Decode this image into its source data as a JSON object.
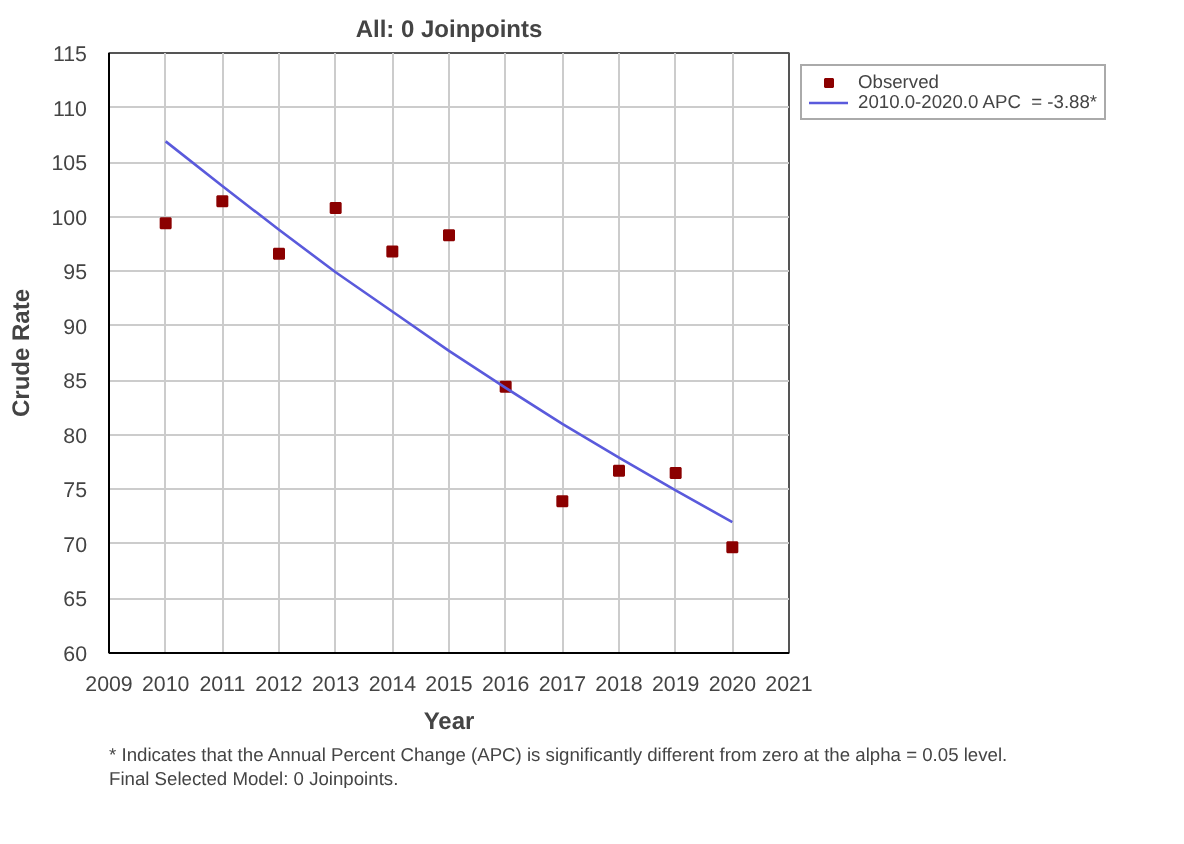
{
  "chart_data": {
    "type": "scatter",
    "title": "All: 0 Joinpoints",
    "xlabel": "Year",
    "ylabel": "Crude Rate",
    "x": [
      2010,
      2011,
      2012,
      2013,
      2014,
      2015,
      2016,
      2017,
      2018,
      2019,
      2020
    ],
    "series": [
      {
        "name": "Observed",
        "color": "#8b0000",
        "marker": "square",
        "values": [
          99.4,
          101.4,
          96.6,
          100.8,
          96.8,
          98.3,
          84.4,
          73.9,
          76.7,
          76.5,
          69.7
        ]
      },
      {
        "name": "2010.0-2020.0 APC  = -3.88*",
        "type": "line",
        "color": "#5a5adc",
        "line_style": "solid",
        "values": [
          106.9,
          102.8,
          98.8,
          94.9,
          91.3,
          87.7,
          84.3,
          81.0,
          77.9,
          74.9,
          72.0
        ]
      }
    ],
    "xlim": [
      2009,
      2021
    ],
    "xticks": [
      2009,
      2010,
      2011,
      2012,
      2013,
      2014,
      2015,
      2016,
      2017,
      2018,
      2019,
      2020,
      2021
    ],
    "ylim": [
      60,
      115
    ],
    "yticks": [
      60,
      65,
      70,
      75,
      80,
      85,
      90,
      95,
      100,
      105,
      110,
      115
    ],
    "grid": true,
    "legend": "top right",
    "annotations": [
      "* Indicates that the Annual Percent Change (APC) is significantly different from zero at the alpha = 0.05 level.",
      "Final Selected Model: 0 Joinpoints."
    ]
  }
}
